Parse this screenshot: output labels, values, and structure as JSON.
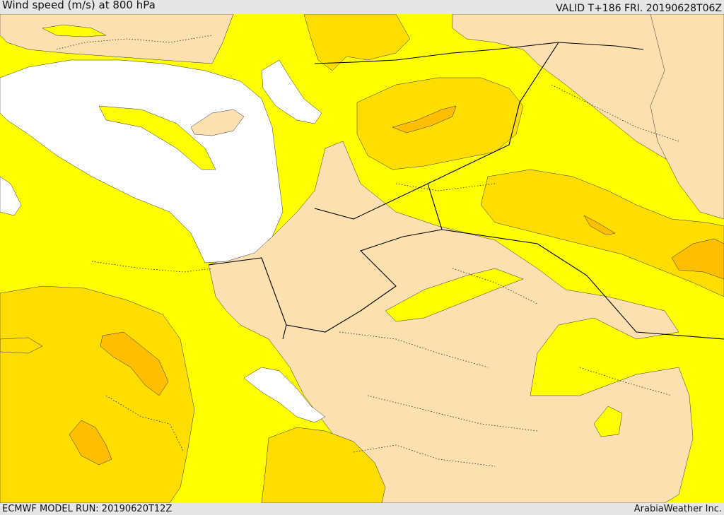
{
  "header": {
    "title": "Wind speed (m/s) at 800 hPa",
    "valid": "VALID T+186 FRI. 20190628T06Z"
  },
  "footer": {
    "model_run": "ECMWF MODEL RUN: 20190620T12Z",
    "credit": "ArabiaWeather Inc."
  },
  "colors": {
    "calm_white": "#ffffff",
    "tan": "#fde0b0",
    "yellow": "#ffff00",
    "gold": "#ffdd00",
    "orange": "#ffbf00",
    "border": "#000000"
  }
}
